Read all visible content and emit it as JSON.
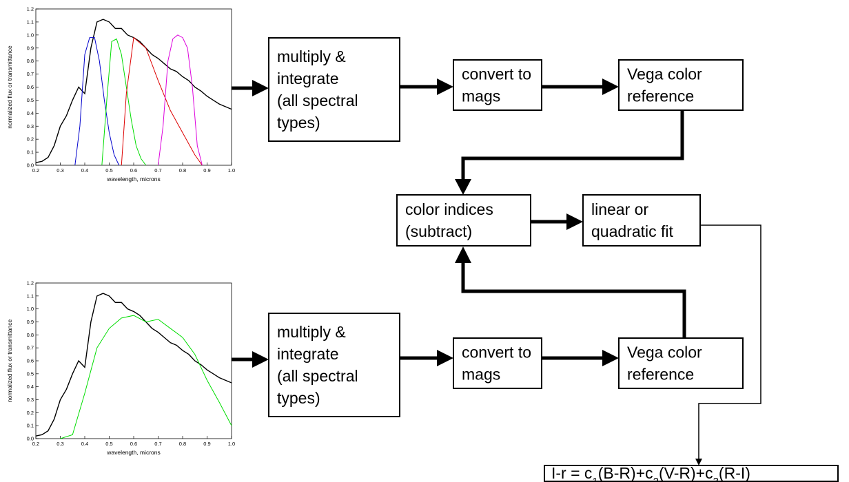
{
  "charts": [
    {
      "type": "line",
      "xlabel": "wavelength, microns",
      "ylabel": "normalized flux or transmittance",
      "xlim": [
        0.2,
        1.0
      ],
      "ylim": [
        0,
        1.2
      ],
      "xticks": [
        0.2,
        0.3,
        0.4,
        0.5,
        0.6,
        0.7,
        0.8,
        0.9,
        {
          "value": 1,
          "label": "1.0"
        }
      ],
      "yticks": [
        {
          "value": 0,
          "label": "0.0"
        },
        0.1,
        0.2,
        0.3,
        0.4,
        0.5,
        0.6,
        0.7,
        0.8,
        0.9,
        {
          "value": 1,
          "label": "1.0"
        },
        1.1,
        1.2
      ],
      "series": [
        {
          "color": "#000000",
          "x": [
            0.2,
            0.225,
            0.25,
            0.275,
            0.3,
            0.325,
            0.35,
            0.375,
            0.4,
            0.425,
            0.45,
            0.475,
            0.5,
            0.525,
            0.55,
            0.575,
            0.6,
            0.625,
            0.65,
            0.675,
            0.7,
            0.725,
            0.75,
            0.775,
            0.8,
            0.825,
            0.85,
            0.875,
            0.9,
            0.925,
            0.95,
            0.975,
            1.0
          ],
          "values": [
            0.02,
            0.03,
            0.06,
            0.15,
            0.3,
            0.38,
            0.5,
            0.6,
            0.55,
            0.9,
            1.1,
            1.12,
            1.1,
            1.05,
            1.05,
            1.0,
            0.98,
            0.95,
            0.9,
            0.85,
            0.82,
            0.78,
            0.74,
            0.72,
            0.68,
            0.65,
            0.6,
            0.57,
            0.53,
            0.5,
            0.47,
            0.45,
            0.43
          ]
        },
        {
          "color": "#0000cc",
          "x": [
            0.36,
            0.38,
            0.4,
            0.42,
            0.44,
            0.46,
            0.48,
            0.5,
            0.52,
            0.54
          ],
          "values": [
            0,
            0.3,
            0.85,
            0.98,
            0.98,
            0.8,
            0.5,
            0.25,
            0.08,
            0
          ]
        },
        {
          "color": "#00dd00",
          "x": [
            0.47,
            0.49,
            0.51,
            0.53,
            0.55,
            0.57,
            0.59,
            0.61,
            0.63,
            0.65
          ],
          "values": [
            0,
            0.5,
            0.95,
            0.97,
            0.85,
            0.6,
            0.35,
            0.15,
            0.05,
            0
          ]
        },
        {
          "color": "#dd0000",
          "x": [
            0.55,
            0.57,
            0.6,
            0.65,
            0.7,
            0.75,
            0.8,
            0.85,
            0.88
          ],
          "values": [
            0,
            0.55,
            0.98,
            0.9,
            0.65,
            0.42,
            0.25,
            0.08,
            0
          ]
        },
        {
          "color": "#dd00dd",
          "x": [
            0.7,
            0.72,
            0.74,
            0.76,
            0.78,
            0.8,
            0.82,
            0.84,
            0.86,
            0.88
          ],
          "values": [
            0,
            0.3,
            0.8,
            0.97,
            1.0,
            0.98,
            0.9,
            0.6,
            0.15,
            0
          ]
        }
      ]
    },
    {
      "type": "line",
      "xlabel": "wavelength, microns",
      "ylabel": "normalized flux or transmittance",
      "xlim": [
        0.2,
        1.0
      ],
      "ylim": [
        0,
        1.2
      ],
      "xticks": [
        0.2,
        0.3,
        0.4,
        0.5,
        0.6,
        0.7,
        0.8,
        0.9,
        {
          "value": 1,
          "label": "1.0"
        }
      ],
      "yticks": [
        {
          "value": 0,
          "label": "0.0"
        },
        0.1,
        0.2,
        0.3,
        0.4,
        0.5,
        0.6,
        0.7,
        0.8,
        0.9,
        {
          "value": 1,
          "label": "1.0"
        },
        1.1,
        1.2
      ],
      "series": [
        {
          "color": "#000000",
          "x": [
            0.2,
            0.225,
            0.25,
            0.275,
            0.3,
            0.325,
            0.35,
            0.375,
            0.4,
            0.425,
            0.45,
            0.475,
            0.5,
            0.525,
            0.55,
            0.575,
            0.6,
            0.625,
            0.65,
            0.675,
            0.7,
            0.725,
            0.75,
            0.775,
            0.8,
            0.825,
            0.85,
            0.875,
            0.9,
            0.925,
            0.95,
            0.975,
            1.0
          ],
          "values": [
            0.02,
            0.03,
            0.06,
            0.15,
            0.3,
            0.38,
            0.5,
            0.6,
            0.55,
            0.9,
            1.1,
            1.12,
            1.1,
            1.05,
            1.05,
            1.0,
            0.98,
            0.95,
            0.9,
            0.85,
            0.82,
            0.78,
            0.74,
            0.72,
            0.68,
            0.65,
            0.6,
            0.57,
            0.53,
            0.5,
            0.47,
            0.45,
            0.43
          ]
        },
        {
          "color": "#00dd00",
          "x": [
            0.3,
            0.35,
            0.4,
            0.45,
            0.5,
            0.55,
            0.6,
            0.65,
            0.7,
            0.75,
            0.8,
            0.85,
            0.9,
            0.95,
            1.0
          ],
          "values": [
            0,
            0.03,
            0.35,
            0.7,
            0.85,
            0.93,
            0.95,
            0.9,
            0.92,
            0.85,
            0.78,
            0.65,
            0.45,
            0.28,
            0.1
          ]
        }
      ]
    }
  ],
  "nodes": [
    {
      "lines": [
        "multiply &",
        "integrate",
        "(all spectral",
        "types)"
      ]
    },
    {
      "lines": [
        "convert to",
        "mags"
      ]
    },
    {
      "lines": [
        "Vega color",
        "reference"
      ]
    },
    {
      "lines": [
        "color indices",
        "(subtract)"
      ]
    },
    {
      "lines": [
        "linear or",
        "quadratic fit"
      ]
    },
    {
      "lines": [
        "multiply &",
        "integrate",
        "(all spectral",
        "types)"
      ]
    },
    {
      "lines": [
        "convert to",
        "mags"
      ]
    },
    {
      "lines": [
        "Vega color",
        "reference"
      ]
    }
  ],
  "formula": [
    "I-r = c",
    "1",
    "(B-R)+c",
    "2",
    "(V-R)+c",
    "3",
    "(R-I)"
  ]
}
